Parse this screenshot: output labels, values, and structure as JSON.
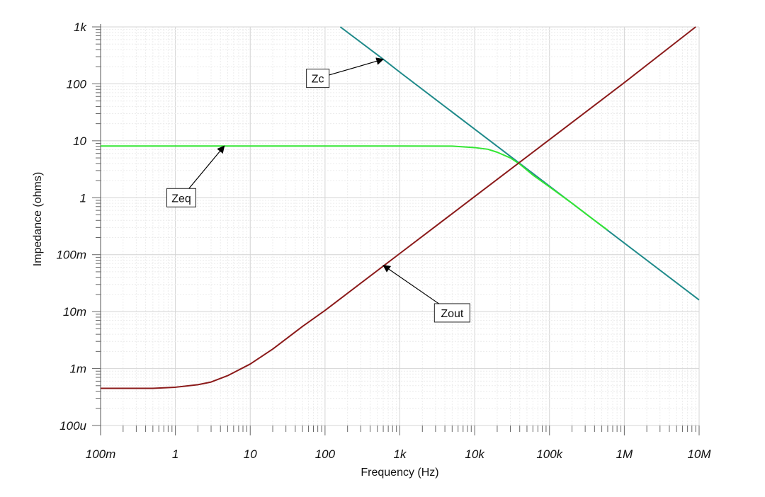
{
  "chart_data": {
    "type": "line",
    "xscale": "log",
    "yscale": "log",
    "xlabel": "Frequency (Hz)",
    "ylabel": "Impedance (ohms)",
    "xlim": [
      0.1,
      10000000
    ],
    "ylim": [
      0.0001,
      1000
    ],
    "grid": true,
    "x_ticks": [
      {
        "value": 0.1,
        "label": "100m"
      },
      {
        "value": 1,
        "label": "1"
      },
      {
        "value": 10,
        "label": "10"
      },
      {
        "value": 100,
        "label": "100"
      },
      {
        "value": 1000,
        "label": "1k"
      },
      {
        "value": 10000,
        "label": "10k"
      },
      {
        "value": 100000,
        "label": "100k"
      },
      {
        "value": 1000000,
        "label": "1M"
      },
      {
        "value": 10000000,
        "label": "10M"
      }
    ],
    "y_ticks": [
      {
        "value": 1000,
        "label": "1k"
      },
      {
        "value": 100,
        "label": "100"
      },
      {
        "value": 10,
        "label": "10"
      },
      {
        "value": 1,
        "label": "1"
      },
      {
        "value": 0.1,
        "label": "100m"
      },
      {
        "value": 0.01,
        "label": "10m"
      },
      {
        "value": 0.001,
        "label": "1m"
      },
      {
        "value": 0.0001,
        "label": "100u"
      }
    ],
    "series": [
      {
        "name": "Zc",
        "color": "#1f8a8a",
        "points": [
          [
            160,
            1000
          ],
          [
            600,
            270
          ],
          [
            1000,
            160
          ],
          [
            10000,
            16
          ],
          [
            100000,
            1.6
          ],
          [
            1000000,
            0.16
          ],
          [
            10000000,
            0.016
          ]
        ]
      },
      {
        "name": "Zeq",
        "color": "#33e633",
        "points": [
          [
            0.1,
            8.1
          ],
          [
            1000,
            8.1
          ],
          [
            5000,
            8.05
          ],
          [
            10000,
            7.6
          ],
          [
            15000,
            7.1
          ],
          [
            20000,
            6.3
          ],
          [
            30000,
            5.0
          ],
          [
            40000,
            3.9
          ],
          [
            60000,
            2.5
          ],
          [
            100000,
            1.55
          ],
          [
            200000,
            0.8
          ],
          [
            400000,
            0.4
          ],
          [
            600000,
            0.27
          ]
        ]
      },
      {
        "name": "Zout",
        "color": "#8b1a1a",
        "points": [
          [
            0.1,
            0.00045
          ],
          [
            0.5,
            0.00045
          ],
          [
            1,
            0.00047
          ],
          [
            2,
            0.00052
          ],
          [
            3,
            0.00058
          ],
          [
            5,
            0.00075
          ],
          [
            10,
            0.0012
          ],
          [
            20,
            0.0022
          ],
          [
            50,
            0.0055
          ],
          [
            100,
            0.0105
          ],
          [
            1000,
            0.105
          ],
          [
            10000,
            1.05
          ],
          [
            100000,
            10.5
          ],
          [
            1000000,
            105
          ],
          [
            9000000,
            1000
          ]
        ]
      }
    ],
    "annotations": [
      {
        "label": "Zc",
        "target": [
          600,
          270
        ],
        "box_anchor": [
          80,
          125
        ]
      },
      {
        "label": "Zeq",
        "target": [
          4.5,
          8.1
        ],
        "box_anchor": [
          1.2,
          1.0
        ]
      },
      {
        "label": "Zout",
        "target": [
          600,
          0.065
        ],
        "box_anchor": [
          5000,
          0.0095
        ]
      }
    ]
  }
}
